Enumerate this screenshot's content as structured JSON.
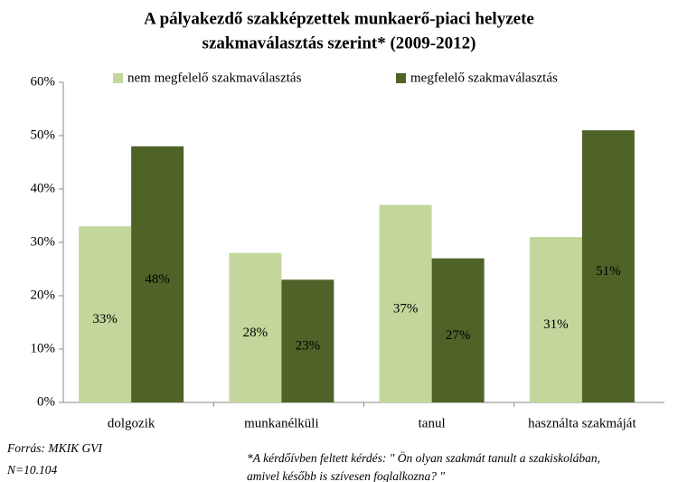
{
  "chart_data": {
    "type": "bar",
    "title": [
      "A pályakezdő szakképzettek munkaerő-piaci helyzete",
      "szakmaválasztás szerint* (2009-2012)"
    ],
    "categories": [
      "dolgozik",
      "munkanélküli",
      "tanul",
      "használta szakmáját"
    ],
    "series": [
      {
        "name": "nem megfelelő szakmaválasztás",
        "color": "#c3d69b",
        "values": [
          33,
          28,
          37,
          31
        ],
        "value_labels": [
          "33%",
          "28%",
          "37%",
          "31%"
        ]
      },
      {
        "name": "megfelelő szakmaválasztás",
        "color": "#4f6228",
        "values": [
          48,
          23,
          27,
          51
        ],
        "value_labels": [
          "48%",
          "23%",
          "27%",
          "51%"
        ]
      }
    ],
    "ylim": [
      0,
      60
    ],
    "yticks": [
      {
        "value": 0,
        "label": "0%"
      },
      {
        "value": 10,
        "label": "10%"
      },
      {
        "value": 20,
        "label": "20%"
      },
      {
        "value": 30,
        "label": "30%"
      },
      {
        "value": 40,
        "label": "40%"
      },
      {
        "value": 50,
        "label": "50%"
      },
      {
        "value": 60,
        "label": "60%"
      }
    ],
    "grid": false,
    "legend": "top",
    "source": [
      "Forrás: MKIK GVI",
      "N=10.104"
    ],
    "footnote": [
      "*A kérdőívben feltett kérdés: \" Ön olyan szakmát tanult a szakiskolában,",
      "amivel később is szívesen foglalkozna? \""
    ]
  }
}
